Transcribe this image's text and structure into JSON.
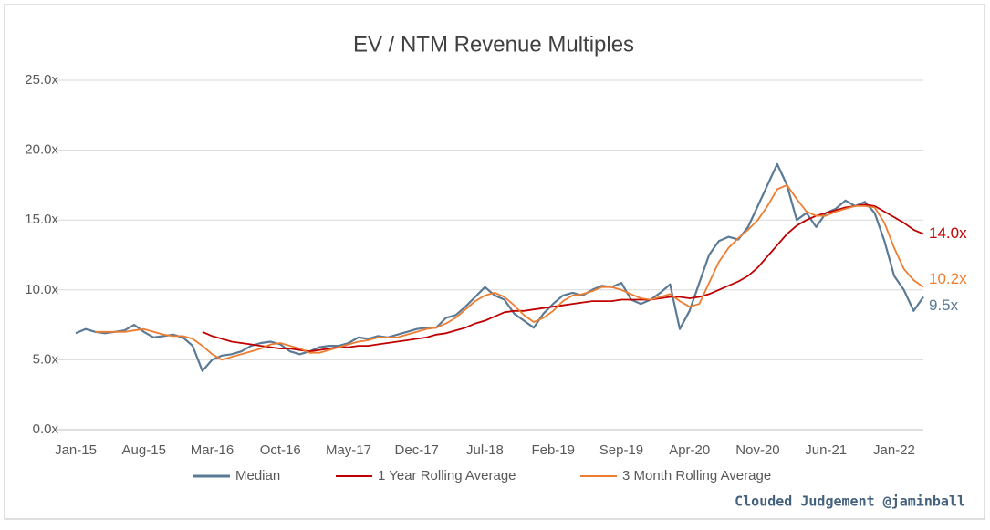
{
  "chart_data": {
    "type": "line",
    "title": "EV / NTM Revenue Multiples",
    "footer": "Clouded Judgement @jaminball",
    "categories": [
      "Jan-15",
      null,
      null,
      null,
      null,
      null,
      null,
      "Aug-15",
      null,
      null,
      null,
      null,
      null,
      null,
      "Mar-16",
      null,
      null,
      null,
      null,
      null,
      null,
      "Oct-16",
      null,
      null,
      null,
      null,
      null,
      null,
      "May-17",
      null,
      null,
      null,
      null,
      null,
      null,
      "Dec-17",
      null,
      null,
      null,
      null,
      null,
      null,
      "Jul-18",
      null,
      null,
      null,
      null,
      null,
      null,
      "Feb-19",
      null,
      null,
      null,
      null,
      null,
      null,
      "Sep-19",
      null,
      null,
      null,
      null,
      null,
      null,
      "Apr-20",
      null,
      null,
      null,
      null,
      null,
      null,
      "Nov-20",
      null,
      null,
      null,
      null,
      null,
      null,
      "Jun-21",
      null,
      null,
      null,
      null,
      null,
      null,
      "Jan-22",
      null,
      null,
      null
    ],
    "ylim": [
      0,
      25
    ],
    "yticks": [
      {
        "value": 0,
        "label": "0.0x"
      },
      {
        "value": 5,
        "label": "5.0x"
      },
      {
        "value": 10,
        "label": "10.0x"
      },
      {
        "value": 15,
        "label": "15.0x"
      },
      {
        "value": 20,
        "label": "20.0x"
      },
      {
        "value": 25,
        "label": "25.0x"
      }
    ],
    "grid": true,
    "series": [
      {
        "name": "Median",
        "color": "#5b7a96",
        "end_label": "9.5x",
        "values": [
          6.9,
          7.2,
          7.0,
          6.9,
          7.0,
          7.1,
          7.5,
          7.0,
          6.6,
          6.7,
          6.8,
          6.6,
          6.0,
          4.2,
          5.0,
          5.3,
          5.4,
          5.6,
          6.0,
          6.2,
          6.3,
          6.1,
          5.6,
          5.4,
          5.6,
          5.9,
          6.0,
          6.0,
          6.2,
          6.6,
          6.5,
          6.7,
          6.6,
          6.8,
          7.0,
          7.2,
          7.3,
          7.3,
          8.0,
          8.2,
          8.8,
          9.5,
          10.2,
          9.6,
          9.3,
          8.3,
          7.8,
          7.3,
          8.3,
          9.0,
          9.6,
          9.8,
          9.6,
          10.0,
          10.3,
          10.2,
          10.5,
          9.3,
          9.0,
          9.3,
          9.8,
          10.4,
          7.2,
          8.5,
          10.5,
          12.5,
          13.5,
          13.8,
          13.6,
          14.5,
          16.0,
          17.5,
          19.0,
          17.5,
          15.0,
          15.5,
          14.5,
          15.5,
          15.8,
          16.4,
          16.0,
          16.3,
          15.5,
          13.5,
          11.0,
          10.0,
          8.5,
          9.5
        ]
      },
      {
        "name": "1 Year Rolling Average",
        "color": "#c00000",
        "end_label": "14.0x",
        "values": [
          null,
          null,
          null,
          null,
          null,
          null,
          null,
          null,
          null,
          null,
          null,
          null,
          null,
          7.0,
          6.7,
          6.5,
          6.3,
          6.2,
          6.1,
          6.0,
          5.9,
          5.8,
          5.8,
          5.7,
          5.6,
          5.7,
          5.8,
          5.9,
          5.9,
          6.0,
          6.0,
          6.1,
          6.2,
          6.3,
          6.4,
          6.5,
          6.6,
          6.8,
          6.9,
          7.1,
          7.3,
          7.6,
          7.8,
          8.1,
          8.4,
          8.5,
          8.5,
          8.6,
          8.7,
          8.8,
          8.9,
          9.0,
          9.1,
          9.2,
          9.2,
          9.2,
          9.3,
          9.3,
          9.3,
          9.3,
          9.4,
          9.5,
          9.5,
          9.4,
          9.5,
          9.7,
          10.0,
          10.3,
          10.6,
          11.0,
          11.6,
          12.4,
          13.2,
          14.0,
          14.6,
          15.0,
          15.3,
          15.5,
          15.7,
          15.9,
          16.0,
          16.1,
          16.0,
          15.6,
          15.2,
          14.8,
          14.3,
          14.0
        ]
      },
      {
        "name": "3 Month Rolling Average",
        "color": "#ed7d31",
        "end_label": "10.2x",
        "values": [
          null,
          null,
          7.0,
          7.0,
          7.0,
          7.0,
          7.1,
          7.2,
          7.0,
          6.8,
          6.7,
          6.7,
          6.5,
          6.0,
          5.4,
          5.0,
          5.2,
          5.4,
          5.6,
          5.8,
          6.1,
          6.2,
          6.0,
          5.8,
          5.5,
          5.5,
          5.7,
          5.9,
          6.1,
          6.3,
          6.4,
          6.6,
          6.6,
          6.6,
          6.8,
          7.0,
          7.2,
          7.3,
          7.6,
          8.0,
          8.6,
          9.2,
          9.6,
          9.8,
          9.5,
          8.9,
          8.2,
          7.7,
          8.0,
          8.5,
          9.2,
          9.6,
          9.7,
          9.9,
          10.2,
          10.2,
          10.0,
          9.7,
          9.4,
          9.3,
          9.5,
          9.7,
          9.2,
          8.8,
          9.0,
          10.5,
          12.0,
          13.0,
          13.7,
          14.3,
          15.0,
          16.0,
          17.2,
          17.5,
          16.5,
          15.6,
          15.3,
          15.3,
          15.6,
          15.8,
          16.0,
          16.0,
          15.9,
          14.8,
          13.0,
          11.5,
          10.7,
          10.2
        ]
      }
    ]
  }
}
